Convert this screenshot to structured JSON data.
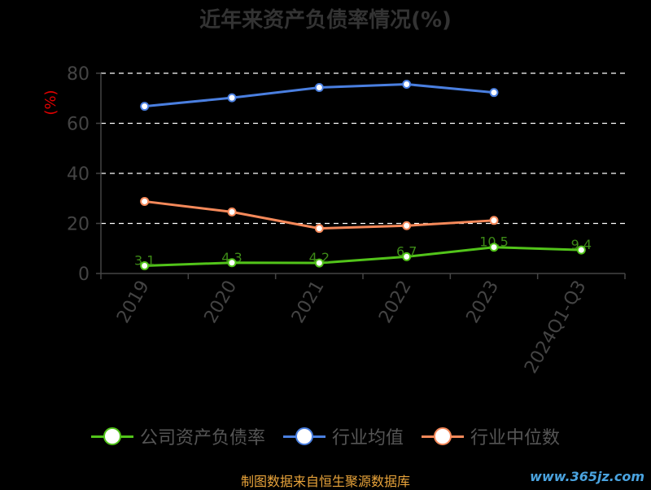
{
  "chart_data": {
    "type": "line",
    "title": "近年来资产负债率情况(%)",
    "ylabel": "(%)",
    "xlabel": "",
    "categories": [
      "2019",
      "2020",
      "2021",
      "2022",
      "2023",
      "2024Q1-Q3"
    ],
    "ylim": [
      0,
      80
    ],
    "yticks": [
      0,
      20,
      40,
      60,
      80
    ],
    "grid": true,
    "legend_position": "bottom",
    "series": [
      {
        "name": "公司资产负债率",
        "color": "#52c41a",
        "values": [
          3.1,
          4.3,
          4.2,
          6.7,
          10.5,
          9.4
        ],
        "labels": [
          "3.1",
          "4.3",
          "4.2",
          "6.7",
          "10.5",
          "9.4"
        ]
      },
      {
        "name": "行业均值",
        "color": "#4a7fe0",
        "values": [
          66.8,
          70.2,
          74.3,
          75.6,
          72.3,
          null
        ],
        "labels": []
      },
      {
        "name": "行业中位数",
        "color": "#f5895a",
        "values": [
          28.8,
          24.6,
          18.0,
          19.1,
          21.2,
          null
        ],
        "labels": []
      }
    ]
  },
  "footer": "制图数据来自恒生聚源数据库",
  "watermark": "www.365jz.com"
}
